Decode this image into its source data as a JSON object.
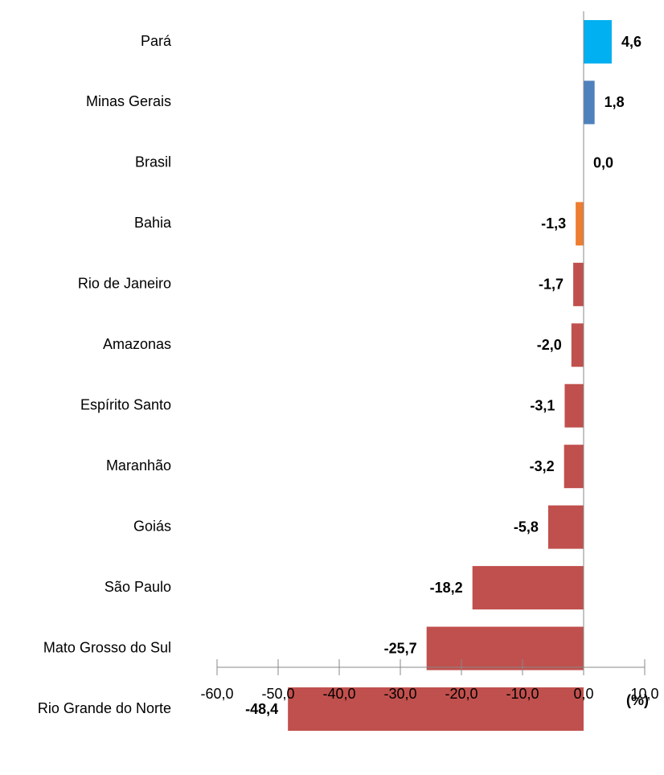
{
  "chart_data": {
    "type": "barh",
    "categories": [
      "Pará",
      "Minas Gerais",
      "Brasil",
      "Bahia",
      "Rio de Janeiro",
      "Amazonas",
      "Espírito Santo",
      "Maranhão",
      "Goiás",
      "São Paulo",
      "Mato Grosso do Sul",
      "Rio Grande do Norte"
    ],
    "values": [
      4.6,
      1.8,
      0.0,
      -1.3,
      -1.7,
      -2.0,
      -3.1,
      -3.2,
      -5.8,
      -18.2,
      -25.7,
      -48.4
    ],
    "value_labels": [
      "4,6",
      "1,8",
      "0,0",
      "-1,3",
      "-1,7",
      "-2,0",
      "-3,1",
      "-3,2",
      "-5,8",
      "-18,2",
      "-25,7",
      "-48,4"
    ],
    "colors": [
      "#00b0f0",
      "#4f81bd",
      "#4f81bd",
      "#ed7d31",
      "#c0504d",
      "#c0504d",
      "#c0504d",
      "#c0504d",
      "#c0504d",
      "#c0504d",
      "#c0504d",
      "#c0504d"
    ],
    "xlim": [
      -60,
      10
    ],
    "xticks": [
      {
        "value": -60,
        "label": "-60,0"
      },
      {
        "value": -50,
        "label": "-50,0"
      },
      {
        "value": -40,
        "label": "-40,0"
      },
      {
        "value": -30,
        "label": "-30,0"
      },
      {
        "value": -20,
        "label": "-20,0"
      },
      {
        "value": -10,
        "label": "-10,0"
      },
      {
        "value": 0,
        "label": "0,0"
      },
      {
        "value": 10,
        "label": "10,0"
      }
    ],
    "annotation": "(%)"
  }
}
